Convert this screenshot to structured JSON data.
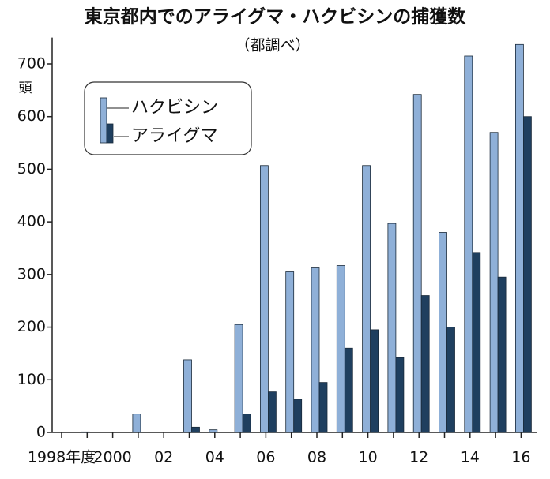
{
  "chart_data": {
    "type": "bar",
    "title": "東京都内でのアライグマ・ハクビシンの捕獲数",
    "subtitle": "（都調べ）",
    "y_label": "頭",
    "categories": [
      "1998年度",
      null,
      "2000",
      null,
      "02",
      null,
      "04",
      null,
      "06",
      null,
      "08",
      null,
      "10",
      null,
      "12",
      null,
      "14",
      null,
      "16"
    ],
    "series": [
      {
        "name": "ハクビシン",
        "color": "#8fb0d8",
        "values": [
          0,
          1,
          0,
          35,
          0,
          138,
          5,
          205,
          507,
          305,
          314,
          317,
          507,
          397,
          642,
          380,
          715,
          570,
          737
        ]
      },
      {
        "name": "アライグマ",
        "color": "#1f3f5f",
        "values": [
          0,
          0,
          0,
          0,
          0,
          10,
          0,
          35,
          77,
          63,
          95,
          160,
          195,
          142,
          260,
          200,
          342,
          295,
          600
        ]
      }
    ],
    "ylim": [
      0,
      750
    ],
    "yticks": [
      0,
      100,
      200,
      300,
      400,
      500,
      600,
      700
    ],
    "legend": "upper left"
  }
}
